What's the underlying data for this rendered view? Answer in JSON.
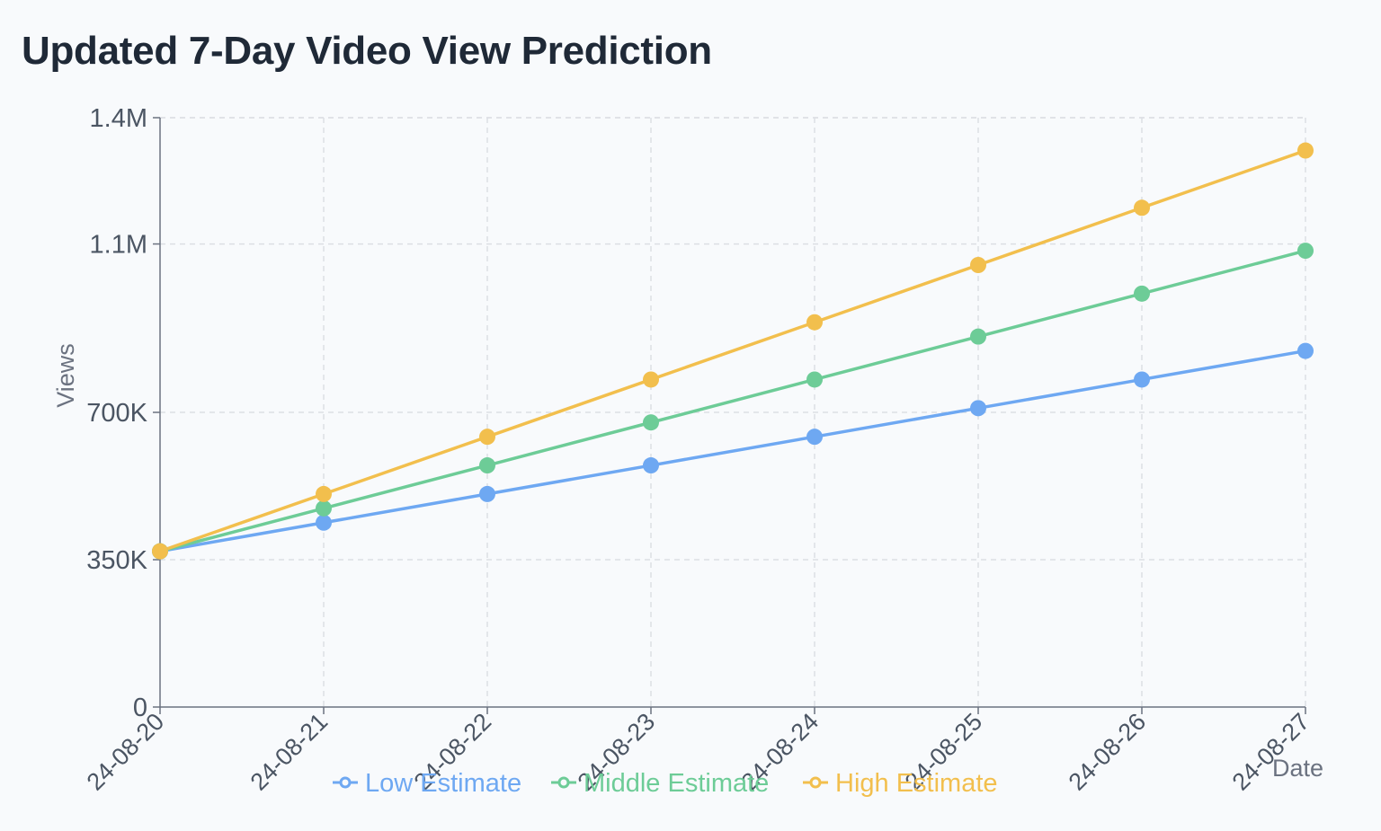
{
  "chart_title": "Updated 7-Day Video View Prediction",
  "chart_data": {
    "type": "line",
    "title": "Updated 7-Day Video View Prediction",
    "xlabel": "Date",
    "ylabel": "Views",
    "x": [
      "2024-08-20",
      "2024-08-21",
      "2024-08-22",
      "2024-08-23",
      "2024-08-24",
      "2024-08-25",
      "2024-08-26",
      "2024-08-27"
    ],
    "x_tick_labels": [
      "24-08-20",
      "24-08-21",
      "24-08-22",
      "24-08-23",
      "24-08-24",
      "24-08-25",
      "24-08-26",
      "24-08-27"
    ],
    "ylim": [
      0,
      1400000
    ],
    "y_ticks": [
      0,
      350000,
      700000,
      1100000,
      1400000
    ],
    "y_tick_labels": [
      "0",
      "350K",
      "700K",
      "1.1M",
      "1.4M"
    ],
    "grid": true,
    "legend_position": "bottom",
    "series": [
      {
        "name": "Low Estimate",
        "color": "#6ea8f2",
        "values": [
          370000,
          438000,
          506000,
          574000,
          642000,
          710000,
          778000,
          846000
        ]
      },
      {
        "name": "Middle Estimate",
        "color": "#6dcc97",
        "values": [
          370000,
          472000,
          574000,
          676000,
          778000,
          880000,
          982000,
          1084000
        ]
      },
      {
        "name": "High Estimate",
        "color": "#f2bf4d",
        "values": [
          370000,
          506000,
          642000,
          778000,
          914000,
          1050000,
          1186000,
          1322000
        ]
      }
    ]
  }
}
